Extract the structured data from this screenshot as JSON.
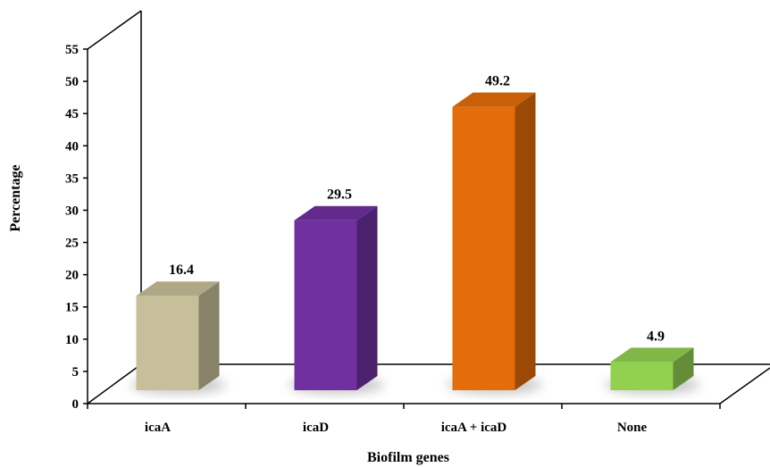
{
  "chart_data": {
    "type": "bar",
    "categories": [
      "icaA",
      "icaD",
      "icaA + icaD",
      "None"
    ],
    "values": [
      16.4,
      29.5,
      49.2,
      4.9
    ],
    "value_labels": [
      "16.4",
      "29.5",
      "49.2",
      "4.9"
    ],
    "colors": [
      "#c7bf99",
      "#7030a0",
      "#e46c0a",
      "#92d050"
    ],
    "xlabel": "Biofilm genes",
    "ylabel": "Percentage",
    "ylim": [
      0,
      55
    ],
    "yticks": [
      "0",
      "5",
      "10",
      "15",
      "20",
      "25",
      "30",
      "35",
      "40",
      "45",
      "50",
      "55"
    ],
    "style": "3d",
    "grid": false,
    "legend": "none"
  }
}
